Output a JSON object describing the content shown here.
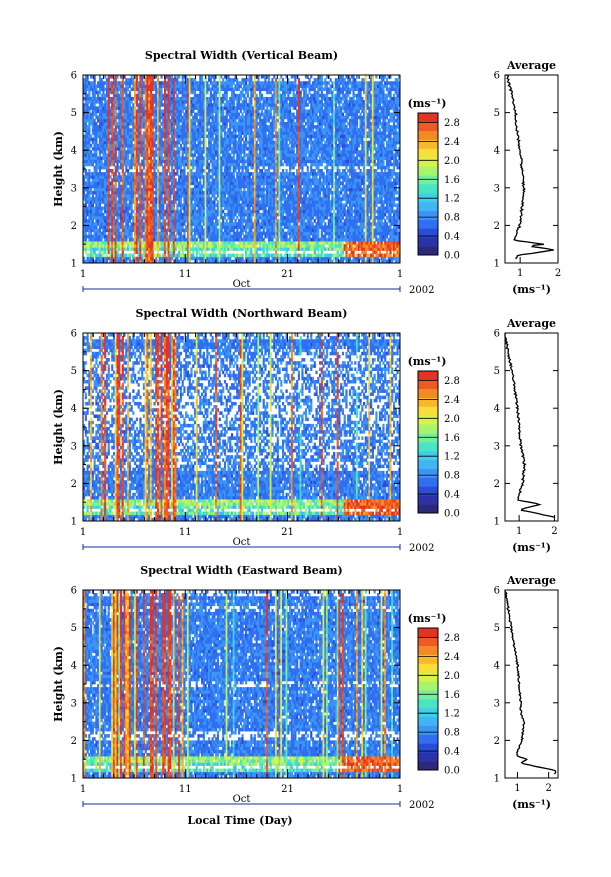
{
  "figure": {
    "time_axis_title": "Local Time (Day)",
    "time_ticks": [
      "1",
      "11",
      "21",
      "1"
    ],
    "month_label": "Oct",
    "year_label": "2002",
    "height_axis_title": "Height (km)",
    "height_ticks": [
      "1",
      "2",
      "3",
      "4",
      "5",
      "6"
    ],
    "colorbar_unit": "(ms⁻¹)",
    "colorbar_ticks": [
      "0.0",
      "0.4",
      "0.8",
      "1.2",
      "1.6",
      "2.0",
      "2.4",
      "2.8"
    ],
    "colorscale": [
      "#2a2a78",
      "#2c32a8",
      "#2b4cd6",
      "#2f6ff0",
      "#3c95f6",
      "#41b4f4",
      "#3fd0e8",
      "#48e4c4",
      "#74f09a",
      "#a8f46c",
      "#d8f24a",
      "#f8de38",
      "#f8b82c",
      "#f48a26",
      "#ee5a24",
      "#e23424"
    ],
    "profile_title": "Average",
    "profile_unit": "(ms⁻¹)",
    "profile_ticks": [
      "1",
      "2"
    ]
  },
  "chart_data": [
    {
      "type": "heatmap",
      "title": "Spectral Width (Vertical Beam)",
      "xlabel": "Local Time (Day)",
      "ylabel": "Height (km)",
      "xlim": [
        "1 Oct 2002",
        "1 Nov 2002"
      ],
      "ylim": [
        1,
        6
      ],
      "colorbar_label": "(ms⁻¹)",
      "colorbar_range": [
        0.0,
        3.0
      ],
      "colorbar_ticks": [
        0.0,
        0.4,
        0.8,
        1.2,
        1.6,
        2.0,
        2.4,
        2.8
      ],
      "average_profile": {
        "title": "Average",
        "xlabel": "(ms⁻¹)",
        "xlim": [
          0.6,
          2.0
        ],
        "height_km": [
          1.2,
          1.35,
          1.45,
          1.5,
          1.6,
          1.8,
          2.0,
          2.5,
          3.0,
          3.5,
          4.0,
          4.5,
          5.0,
          5.5,
          5.8,
          6.0
        ],
        "width_ms": [
          0.9,
          1.95,
          1.2,
          1.65,
          0.85,
          0.9,
          1.0,
          1.05,
          1.1,
          1.05,
          1.0,
          0.92,
          0.88,
          0.78,
          0.7,
          0.65
        ]
      }
    },
    {
      "type": "heatmap",
      "title": "Spectral Width (Northward Beam)",
      "xlabel": "Local Time (Day)",
      "ylabel": "Height (km)",
      "xlim": [
        "1 Oct 2002",
        "1 Nov 2002"
      ],
      "ylim": [
        1,
        6
      ],
      "colorbar_label": "(ms⁻¹)",
      "colorbar_range": [
        0.0,
        3.0
      ],
      "colorbar_ticks": [
        0.0,
        0.4,
        0.8,
        1.2,
        1.6,
        2.0,
        2.4,
        2.8
      ],
      "average_profile": {
        "title": "Average",
        "xlabel": "(ms⁻¹)",
        "xlim": [
          0.6,
          2.1
        ],
        "height_km": [
          1.1,
          1.3,
          1.45,
          1.55,
          1.7,
          2.0,
          2.5,
          3.0,
          3.5,
          4.0,
          4.5,
          5.0,
          5.3,
          5.7,
          6.0
        ],
        "width_ms": [
          2.0,
          1.0,
          1.6,
          0.95,
          1.0,
          1.1,
          1.15,
          1.05,
          1.0,
          0.95,
          0.88,
          0.8,
          0.72,
          0.65,
          0.6
        ]
      }
    },
    {
      "type": "heatmap",
      "title": "Spectral Width (Eastward Beam)",
      "xlabel": "Local Time (Day)",
      "ylabel": "Height (km)",
      "xlim": [
        "1 Oct 2002",
        "1 Nov 2002"
      ],
      "ylim": [
        1,
        6
      ],
      "colorbar_label": "(ms⁻¹)",
      "colorbar_range": [
        0.0,
        3.0
      ],
      "colorbar_ticks": [
        0.0,
        0.4,
        0.8,
        1.2,
        1.6,
        2.0,
        2.4,
        2.8
      ],
      "average_profile": {
        "title": "Average",
        "xlabel": "(ms⁻¹)",
        "xlim": [
          0.6,
          2.3
        ],
        "height_km": [
          1.2,
          1.4,
          1.5,
          1.6,
          1.8,
          2.0,
          2.5,
          2.8,
          3.0,
          3.5,
          4.0,
          4.5,
          5.0,
          5.5,
          6.0
        ],
        "width_ms": [
          2.2,
          1.1,
          1.3,
          0.95,
          1.05,
          1.15,
          1.2,
          1.1,
          1.1,
          1.05,
          1.0,
          0.9,
          0.8,
          0.7,
          0.62
        ]
      }
    }
  ]
}
